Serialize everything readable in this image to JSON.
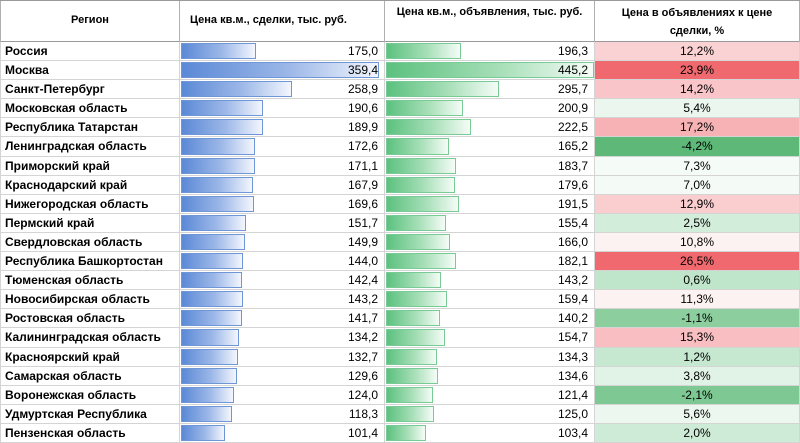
{
  "headers": {
    "region": "Регион",
    "deal_price": "Цена кв.м., сделки, тыс. руб.",
    "ad_price": "Цена кв.м., объявления, тыс. руб.",
    "ratio": "Цена в объявлениях к цене сделки, %"
  },
  "colors": {
    "deal_bar": "#5b89d6",
    "ad_bar": "#5cc17f",
    "positive_strong": "#f0696e",
    "positive_light": "#fbe1e2",
    "negative_strong": "#5eb978",
    "negative_light": "#e3f3e8"
  },
  "rows": [
    {
      "region": "Россия",
      "deal": "175,0",
      "ad": "196,3",
      "ratio": "12,2%",
      "deal_value": 175.0,
      "ad_value": 196.3,
      "ratio_value": 12.2
    },
    {
      "region": "Москва",
      "deal": "359,4",
      "ad": "445,2",
      "ratio": "23,9%",
      "deal_value": 359.4,
      "ad_value": 445.2,
      "ratio_value": 23.9
    },
    {
      "region": "Санкт-Петербург",
      "deal": "258,9",
      "ad": "295,7",
      "ratio": "14,2%",
      "deal_value": 258.9,
      "ad_value": 295.7,
      "ratio_value": 14.2
    },
    {
      "region": "Московская область",
      "deal": "190,6",
      "ad": "200,9",
      "ratio": "5,4%",
      "deal_value": 190.6,
      "ad_value": 200.9,
      "ratio_value": 5.4
    },
    {
      "region": "Республика Татарстан",
      "deal": "189,9",
      "ad": "222,5",
      "ratio": "17,2%",
      "deal_value": 189.9,
      "ad_value": 222.5,
      "ratio_value": 17.2
    },
    {
      "region": "Ленинградская область",
      "deal": "172,6",
      "ad": "165,2",
      "ratio": "-4,2%",
      "deal_value": 172.6,
      "ad_value": 165.2,
      "ratio_value": -4.2
    },
    {
      "region": "Приморский край",
      "deal": "171,1",
      "ad": "183,7",
      "ratio": "7,3%",
      "deal_value": 171.1,
      "ad_value": 183.7,
      "ratio_value": 7.3
    },
    {
      "region": "Краснодарский край",
      "deal": "167,9",
      "ad": "179,6",
      "ratio": "7,0%",
      "deal_value": 167.9,
      "ad_value": 179.6,
      "ratio_value": 7.0
    },
    {
      "region": "Нижегородская область",
      "deal": "169,6",
      "ad": "191,5",
      "ratio": "12,9%",
      "deal_value": 169.6,
      "ad_value": 191.5,
      "ratio_value": 12.9
    },
    {
      "region": "Пермский край",
      "deal": "151,7",
      "ad": "155,4",
      "ratio": "2,5%",
      "deal_value": 151.7,
      "ad_value": 155.4,
      "ratio_value": 2.5
    },
    {
      "region": "Свердловская область",
      "deal": "149,9",
      "ad": "166,0",
      "ratio": "10,8%",
      "deal_value": 149.9,
      "ad_value": 166.0,
      "ratio_value": 10.8
    },
    {
      "region": "Республика Башкортостан",
      "deal": "144,0",
      "ad": "182,1",
      "ratio": "26,5%",
      "deal_value": 144.0,
      "ad_value": 182.1,
      "ratio_value": 26.5
    },
    {
      "region": "Тюменская область",
      "deal": "142,4",
      "ad": "143,2",
      "ratio": "0,6%",
      "deal_value": 142.4,
      "ad_value": 143.2,
      "ratio_value": 0.6
    },
    {
      "region": "Новосибирская область",
      "deal": "143,2",
      "ad": "159,4",
      "ratio": "11,3%",
      "deal_value": 143.2,
      "ad_value": 159.4,
      "ratio_value": 11.3
    },
    {
      "region": "Ростовская область",
      "deal": "141,7",
      "ad": "140,2",
      "ratio": "-1,1%",
      "deal_value": 141.7,
      "ad_value": 140.2,
      "ratio_value": -1.1
    },
    {
      "region": "Калининградская область",
      "deal": "134,2",
      "ad": "154,7",
      "ratio": "15,3%",
      "deal_value": 134.2,
      "ad_value": 154.7,
      "ratio_value": 15.3
    },
    {
      "region": "Красноярский край",
      "deal": "132,7",
      "ad": "134,3",
      "ratio": "1,2%",
      "deal_value": 132.7,
      "ad_value": 134.3,
      "ratio_value": 1.2
    },
    {
      "region": "Самарская область",
      "deal": "129,6",
      "ad": "134,6",
      "ratio": "3,8%",
      "deal_value": 129.6,
      "ad_value": 134.6,
      "ratio_value": 3.8
    },
    {
      "region": "Воронежская область",
      "deal": "124,0",
      "ad": "121,4",
      "ratio": "-2,1%",
      "deal_value": 124.0,
      "ad_value": 121.4,
      "ratio_value": -2.1
    },
    {
      "region": "Удмуртская Республика",
      "deal": "118,3",
      "ad": "125,0",
      "ratio": "5,6%",
      "deal_value": 118.3,
      "ad_value": 125.0,
      "ratio_value": 5.6
    },
    {
      "region": "Пензенская область",
      "deal": "101,4",
      "ad": "103,4",
      "ratio": "2,0%",
      "deal_value": 101.4,
      "ad_value": 103.4,
      "ratio_value": 2.0
    }
  ]
}
